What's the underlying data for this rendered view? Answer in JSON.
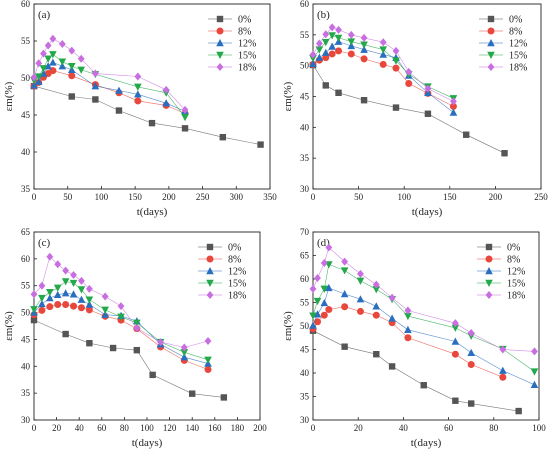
{
  "legend_labels": [
    "0%",
    "8%",
    "12%",
    "15%",
    "18%"
  ],
  "series_colors": [
    "#555555",
    "#e8473c",
    "#2a6fbf",
    "#23a84a",
    "#c86ee0"
  ],
  "series_markers": [
    "square",
    "circle",
    "triangle-up",
    "triangle-down",
    "diamond"
  ],
  "chart_data": [
    {
      "type": "line",
      "panel_label": "(a)",
      "xlabel": "t(days)",
      "ylabel": "εm(%)",
      "xlim": [
        0,
        350
      ],
      "ylim": [
        35,
        60
      ],
      "xticks": [
        0,
        50,
        100,
        150,
        200,
        250,
        300,
        350
      ],
      "yticks": [
        35,
        40,
        45,
        50,
        55,
        60
      ],
      "legend": "top-right",
      "series": [
        {
          "name": "0%",
          "x": [
            0,
            56,
            91,
            126,
            175,
            224,
            280,
            336
          ],
          "y": [
            48.9,
            47.5,
            47.1,
            45.6,
            43.9,
            43.2,
            42.0,
            41.0
          ]
        },
        {
          "name": "8%",
          "x": [
            0,
            7,
            14,
            21,
            28,
            56,
            91,
            126,
            154,
            196,
            224
          ],
          "y": [
            48.9,
            49.4,
            50.1,
            50.6,
            51.0,
            50.3,
            49.1,
            48.0,
            46.9,
            46.3,
            45.2
          ]
        },
        {
          "name": "12%",
          "x": [
            0,
            7,
            14,
            21,
            28,
            42,
            56,
            91,
            126,
            154,
            196,
            224
          ],
          "y": [
            49.0,
            49.5,
            50.6,
            51.6,
            52.1,
            51.6,
            51.1,
            48.9,
            48.3,
            47.8,
            46.6,
            45.5
          ]
        },
        {
          "name": "15%",
          "x": [
            0,
            7,
            14,
            21,
            28,
            42,
            56,
            70,
            91,
            154,
            196,
            224
          ],
          "y": [
            49.7,
            50.2,
            51.3,
            52.6,
            53.2,
            52.2,
            51.6,
            51.1,
            50.5,
            48.8,
            48.0,
            44.7
          ]
        },
        {
          "name": "18%",
          "x": [
            0,
            7,
            14,
            21,
            28,
            42,
            56,
            70,
            91,
            154,
            196,
            224
          ],
          "y": [
            50.1,
            52.0,
            53.3,
            54.4,
            55.3,
            54.6,
            53.7,
            52.6,
            50.6,
            50.2,
            48.4,
            45.7
          ]
        }
      ]
    },
    {
      "type": "line",
      "panel_label": "(b)",
      "xlabel": "t(days)",
      "ylabel": "εm(%)",
      "xlim": [
        0,
        250
      ],
      "ylim": [
        30,
        60
      ],
      "xticks": [
        0,
        50,
        100,
        150,
        200,
        250
      ],
      "yticks": [
        30,
        35,
        40,
        45,
        50,
        55,
        60
      ],
      "legend": "top-right",
      "series": [
        {
          "name": "0%",
          "x": [
            0,
            14,
            28,
            56,
            91,
            126,
            168,
            210
          ],
          "y": [
            50.1,
            46.8,
            45.6,
            44.4,
            43.2,
            42.2,
            38.8,
            35.8
          ]
        },
        {
          "name": "8%",
          "x": [
            0,
            7,
            14,
            21,
            28,
            42,
            56,
            77,
            91,
            105,
            126,
            154
          ],
          "y": [
            50.2,
            50.9,
            51.3,
            51.9,
            52.4,
            51.9,
            51.1,
            50.2,
            49.6,
            47.1,
            45.5,
            43.4
          ]
        },
        {
          "name": "12%",
          "x": [
            0,
            7,
            14,
            21,
            28,
            42,
            56,
            77,
            91,
            105,
            126,
            154
          ],
          "y": [
            50.3,
            51.3,
            52.1,
            53.1,
            53.9,
            53.2,
            52.6,
            51.8,
            51.3,
            48.4,
            45.6,
            42.4
          ]
        },
        {
          "name": "15%",
          "x": [
            0,
            7,
            14,
            21,
            28,
            42,
            56,
            77,
            91,
            105,
            126,
            154
          ],
          "y": [
            51.2,
            52.6,
            53.8,
            54.9,
            54.5,
            53.9,
            53.4,
            52.6,
            50.8,
            48.6,
            46.6,
            44.7
          ]
        },
        {
          "name": "18%",
          "x": [
            0,
            7,
            14,
            21,
            28,
            42,
            56,
            77,
            91,
            105,
            126,
            154
          ],
          "y": [
            51.8,
            53.6,
            55.1,
            56.2,
            55.8,
            55.0,
            54.5,
            53.8,
            52.4,
            49.0,
            46.3,
            44.2
          ]
        }
      ]
    },
    {
      "type": "line",
      "panel_label": "(c)",
      "xlabel": "t(days)",
      "ylabel": "εm(%)",
      "xlim": [
        0,
        200
      ],
      "ylim": [
        30,
        65
      ],
      "xticks": [
        0,
        20,
        40,
        60,
        80,
        100,
        120,
        140,
        160,
        180,
        200
      ],
      "yticks": [
        30,
        35,
        40,
        45,
        50,
        55,
        60,
        65
      ],
      "legend": "top-right",
      "series": [
        {
          "name": "0%",
          "x": [
            0,
            28,
            49,
            70,
            91,
            105,
            140,
            168
          ],
          "y": [
            48.6,
            46.0,
            44.3,
            43.4,
            43.0,
            38.4,
            34.9,
            34.2
          ]
        },
        {
          "name": "8%",
          "x": [
            0,
            7,
            14,
            21,
            28,
            35,
            42,
            49,
            63,
            77,
            91,
            112,
            133,
            154
          ],
          "y": [
            49.6,
            50.4,
            51.1,
            51.5,
            51.5,
            51.2,
            50.9,
            50.5,
            49.3,
            48.6,
            47.0,
            43.6,
            41.1,
            39.4
          ]
        },
        {
          "name": "12%",
          "x": [
            0,
            7,
            14,
            21,
            28,
            35,
            42,
            49,
            63,
            77,
            91,
            112,
            133,
            154
          ],
          "y": [
            50.0,
            51.6,
            52.7,
            53.3,
            53.6,
            53.4,
            52.4,
            51.5,
            49.6,
            49.4,
            48.4,
            44.1,
            41.7,
            40.5
          ]
        },
        {
          "name": "15%",
          "x": [
            0,
            7,
            14,
            21,
            28,
            35,
            42,
            49,
            63,
            77,
            91,
            112,
            133,
            154
          ],
          "y": [
            50.6,
            52.7,
            53.8,
            54.6,
            55.8,
            55.5,
            54.3,
            52.4,
            50.5,
            49.2,
            48.1,
            44.5,
            42.6,
            41.2
          ]
        },
        {
          "name": "18%",
          "x": [
            0,
            7,
            14,
            21,
            28,
            35,
            42,
            49,
            63,
            77,
            91,
            112,
            133,
            154
          ],
          "y": [
            53.4,
            55.0,
            60.4,
            59.0,
            57.8,
            57.0,
            55.9,
            54.4,
            53.0,
            51.2,
            47.1,
            44.5,
            43.5,
            44.7
          ]
        }
      ]
    },
    {
      "type": "line",
      "panel_label": "(d)",
      "xlabel": "t(days)",
      "ylabel": "εm(%)",
      "xlim": [
        0,
        100
      ],
      "ylim": [
        30,
        70
      ],
      "xticks": [
        0,
        20,
        40,
        60,
        80,
        100
      ],
      "yticks": [
        30,
        35,
        40,
        45,
        50,
        55,
        60,
        65,
        70
      ],
      "legend": "top-right",
      "series": [
        {
          "name": "0%",
          "x": [
            0,
            14,
            28,
            35,
            49,
            63,
            70,
            91
          ],
          "y": [
            49.0,
            45.6,
            44.0,
            41.4,
            37.4,
            34.1,
            33.5,
            31.9
          ]
        },
        {
          "name": "8%",
          "x": [
            0,
            2,
            5,
            7,
            14,
            21,
            28,
            35,
            42,
            63,
            70,
            84
          ],
          "y": [
            49.4,
            50.9,
            52.3,
            53.5,
            54.1,
            53.1,
            52.3,
            50.7,
            47.5,
            44.0,
            41.8,
            39.1
          ]
        },
        {
          "name": "12%",
          "x": [
            0,
            2,
            5,
            7,
            14,
            21,
            28,
            35,
            42,
            63,
            70,
            84,
            98
          ],
          "y": [
            50.1,
            52.5,
            54.9,
            58.1,
            56.8,
            55.7,
            54.2,
            51.6,
            49.2,
            46.7,
            44.3,
            40.5,
            37.5
          ]
        },
        {
          "name": "15%",
          "x": [
            0,
            2,
            5,
            7,
            14,
            21,
            28,
            35,
            42,
            63,
            70,
            84,
            98
          ],
          "y": [
            52.2,
            55.3,
            57.9,
            63.1,
            61.8,
            59.6,
            57.8,
            55.7,
            52.1,
            49.6,
            47.9,
            45.1,
            40.3
          ]
        },
        {
          "name": "18%",
          "x": [
            0,
            2,
            5,
            7,
            14,
            21,
            28,
            35,
            42,
            63,
            70,
            84,
            98
          ],
          "y": [
            57.9,
            60.2,
            63.4,
            66.7,
            63.7,
            61.1,
            58.8,
            56.0,
            53.3,
            50.6,
            48.5,
            45.0,
            44.6
          ]
        }
      ]
    }
  ]
}
